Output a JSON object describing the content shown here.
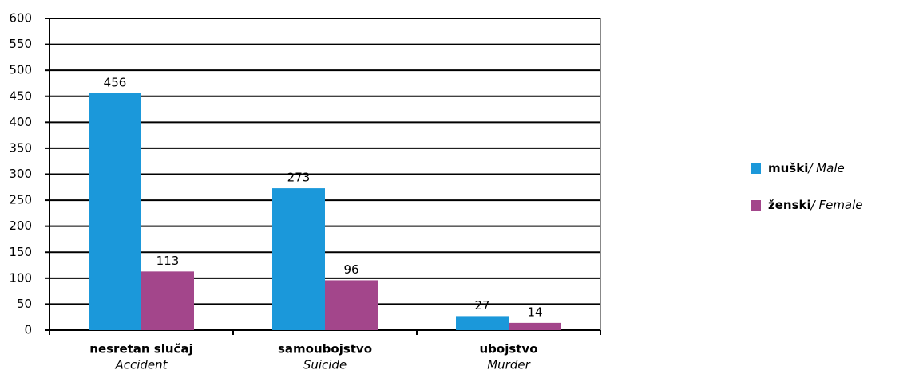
{
  "chart_data": {
    "type": "bar",
    "categories": [
      "nesretan slučaj",
      "samoubojstvo",
      "ubojstvo"
    ],
    "categories_en": [
      "Accident",
      "Suicide",
      "Murder"
    ],
    "series": [
      {
        "name": "muški",
        "name_en": "/ Male",
        "color": "#1b98da",
        "values": [
          456,
          273,
          27
        ]
      },
      {
        "name": "ženski",
        "name_en": "/ Female",
        "color": "#a3468b",
        "values": [
          113,
          96,
          14
        ]
      }
    ],
    "ylim": [
      0,
      600
    ],
    "yticks": [
      0,
      50,
      100,
      150,
      200,
      250,
      300,
      350,
      400,
      450,
      500,
      550,
      600
    ],
    "grid": true,
    "legend": "right"
  }
}
